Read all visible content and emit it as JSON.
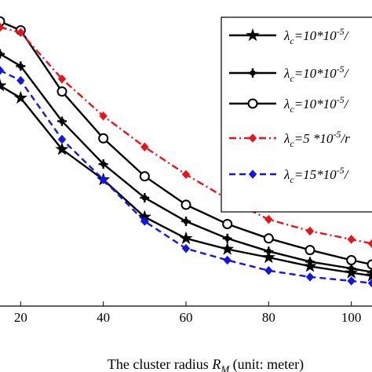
{
  "chart_data": {
    "type": "line",
    "title": "",
    "xlabel": "The cluster radius R",
    "xlabel_sub": "M",
    "xlabel_suffix": " (unit: meter)",
    "ylabel": "",
    "xlim": [
      15,
      105
    ],
    "ylim": [
      0,
      1
    ],
    "x_ticks": [
      20,
      40,
      60,
      80,
      100
    ],
    "grid": false,
    "legend_position": "top-right",
    "series": [
      {
        "name": "λc=10*10^-5/",
        "legend_parts": {
          "sym": "λ",
          "sub": "c",
          "pre": "=10*10",
          "sup": "-5",
          "post": "/"
        },
        "color": "#000000",
        "dash": "solid",
        "marker": "star",
        "x": [
          15,
          20,
          30,
          40,
          50,
          60,
          70,
          80,
          90,
          100,
          105
        ],
        "y": [
          0.72,
          0.68,
          0.512,
          0.413,
          0.291,
          0.221,
          0.186,
          0.159,
          0.13,
          0.109,
          0.099
        ]
      },
      {
        "name": "λc=10*10^-5/",
        "legend_parts": {
          "sym": "λ",
          "sub": "c",
          "pre": "=10*10",
          "sup": "-5",
          "post": "/"
        },
        "color": "#000000",
        "dash": "solid",
        "marker": "plus",
        "x": [
          15,
          20,
          30,
          40,
          50,
          60,
          70,
          80,
          90,
          100,
          105
        ],
        "y": [
          0.824,
          0.784,
          0.604,
          0.464,
          0.354,
          0.277,
          0.221,
          0.179,
          0.145,
          0.123,
          0.111
        ]
      },
      {
        "name": "λc=10*10^-5/",
        "legend_parts": {
          "sym": "λ",
          "sub": "c",
          "pre": "=10*10",
          "sup": "-5",
          "post": "/"
        },
        "color": "#000000",
        "dash": "solid",
        "marker": "circle",
        "x": [
          15,
          20,
          30,
          40,
          50,
          60,
          70,
          80,
          90,
          100,
          105
        ],
        "y": [
          0.93,
          0.901,
          0.701,
          0.548,
          0.424,
          0.331,
          0.268,
          0.221,
          0.183,
          0.15,
          0.136
        ]
      },
      {
        "name": "λc=5 *10^-5/",
        "legend_parts": {
          "sym": "λ",
          "sub": "c",
          "pre": "=5 *10",
          "sup": "-5",
          "post": "/r"
        },
        "color": "#e8141c",
        "dash": "dashdot",
        "marker": "diamond",
        "x": [
          15,
          20,
          30,
          40,
          50,
          60,
          70,
          80,
          90,
          100,
          105
        ],
        "y": [
          0.911,
          0.894,
          0.742,
          0.621,
          0.52,
          0.43,
          0.35,
          0.283,
          0.245,
          0.218,
          0.204
        ]
      },
      {
        "name": "λc=15*10^-5/",
        "legend_parts": {
          "sym": "λ",
          "sub": "c",
          "pre": "=15*10",
          "sup": "-5",
          "post": "/"
        },
        "color": "#1414e6",
        "dash": "dashed",
        "marker": "diamond",
        "x": [
          15,
          20,
          30,
          40,
          50,
          60,
          70,
          80,
          90,
          100,
          105
        ],
        "y": [
          0.77,
          0.737,
          0.545,
          0.413,
          0.277,
          0.188,
          0.15,
          0.116,
          0.095,
          0.082,
          0.075
        ]
      }
    ]
  }
}
